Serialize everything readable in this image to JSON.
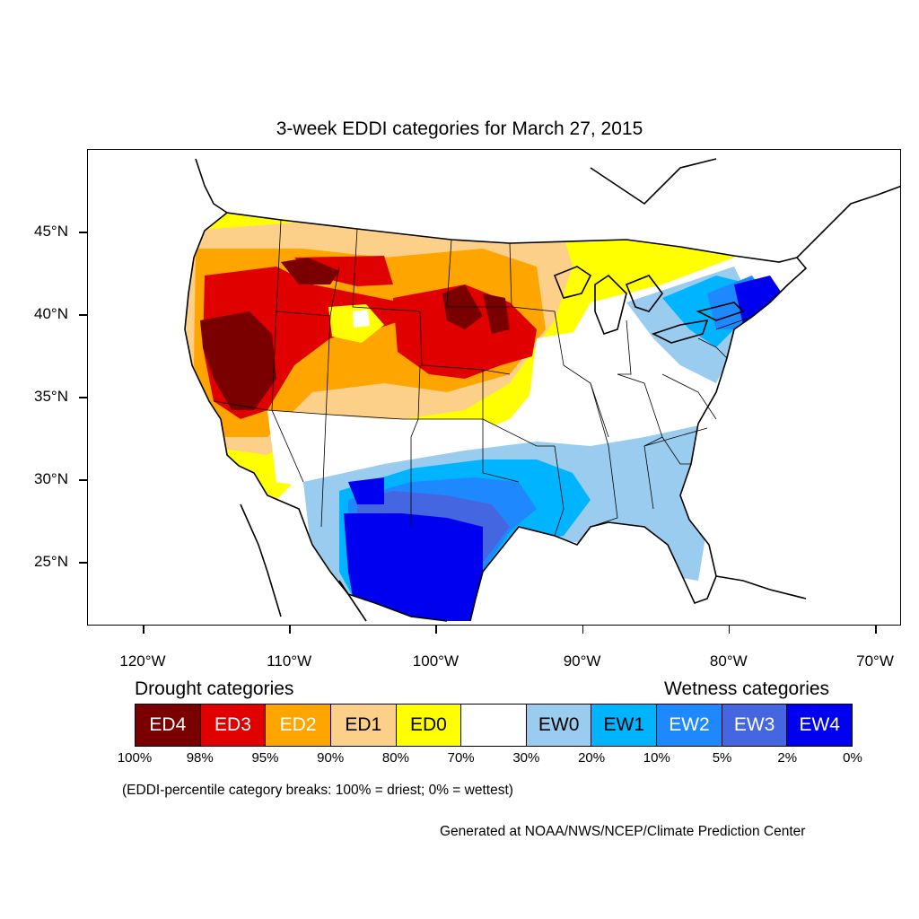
{
  "map": {
    "title": "3-week EDDI categories for March 27, 2015",
    "lat_labels": [
      "45°N",
      "40°N",
      "35°N",
      "30°N",
      "25°N"
    ],
    "lon_labels": [
      "120°W",
      "110°W",
      "100°W",
      "90°W",
      "80°W",
      "70°W"
    ],
    "lat_values": [
      45,
      40,
      35,
      30,
      25
    ],
    "lon_values": [
      -120,
      -110,
      -100,
      -90,
      -80,
      -70
    ]
  },
  "legend": {
    "drought_heading": "Drought categories",
    "wetness_heading": "Wetness categories",
    "categories": [
      {
        "label": "ED4",
        "color": "#7a0000",
        "text_color": "#ffffff"
      },
      {
        "label": "ED3",
        "color": "#e00000",
        "text_color": "#ffffff"
      },
      {
        "label": "ED2",
        "color": "#ffa500",
        "text_color": "#ffffff"
      },
      {
        "label": "ED1",
        "color": "#fdd08a",
        "text_color": "#000000"
      },
      {
        "label": "ED0",
        "color": "#ffff00",
        "text_color": "#000000"
      },
      {
        "label": "",
        "color": "#ffffff",
        "text_color": "#000000"
      },
      {
        "label": "EW0",
        "color": "#99ccee",
        "text_color": "#000000"
      },
      {
        "label": "EW1",
        "color": "#00b4ff",
        "text_color": "#000000"
      },
      {
        "label": "EW2",
        "color": "#1e88ff",
        "text_color": "#ffffff"
      },
      {
        "label": "EW3",
        "color": "#4466e0",
        "text_color": "#ffffff"
      },
      {
        "label": "EW4",
        "color": "#0000f0",
        "text_color": "#ffffff"
      }
    ],
    "percentiles": [
      "100%",
      "98%",
      "95%",
      "90%",
      "80%",
      "70%",
      "30%",
      "20%",
      "10%",
      "5%",
      "2%",
      "0%"
    ],
    "note": "(EDDI-percentile category breaks: 100% = driest; 0% = wettest)"
  },
  "credit": "Generated at NOAA/NWS/NCEP/Climate Prediction Center"
}
